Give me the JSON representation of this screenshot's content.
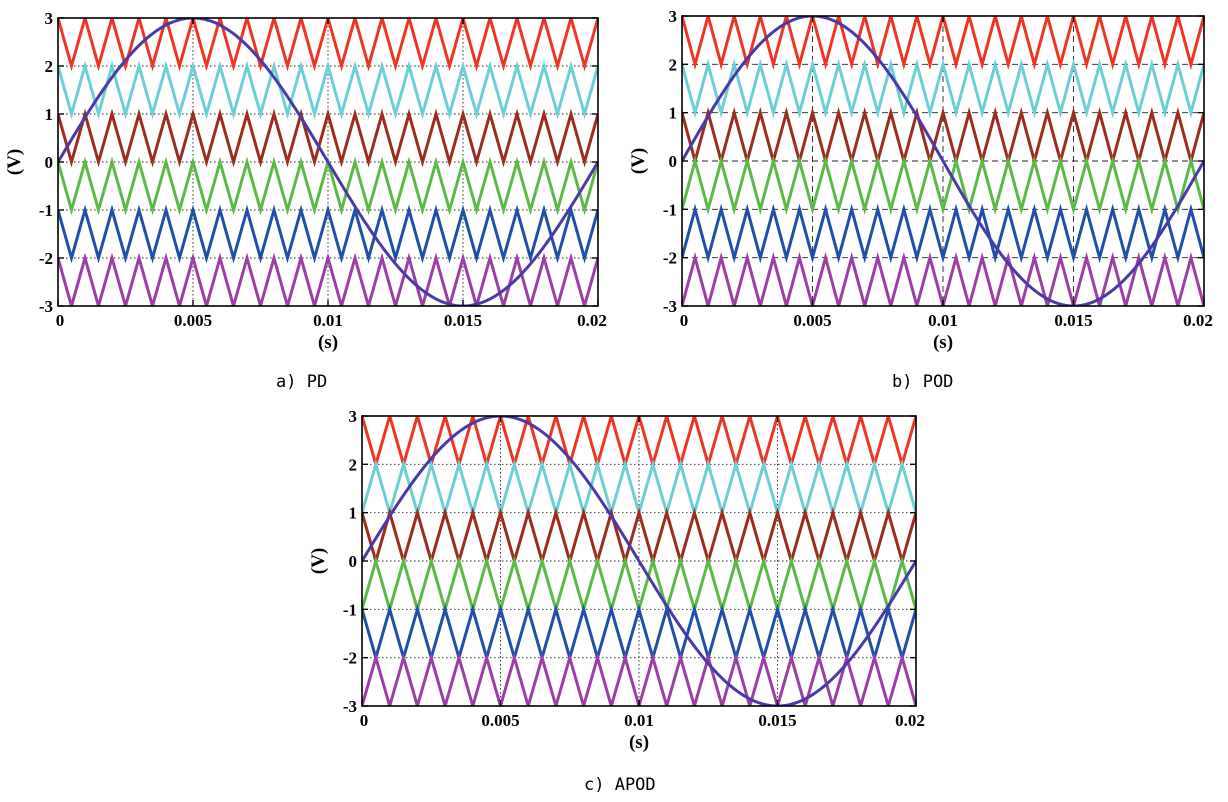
{
  "chart_data": [
    {
      "type": "line",
      "caption": "a) PD",
      "xlabel": "(s)",
      "ylabel": "(V)",
      "xlim": [
        0,
        0.02
      ],
      "ylim": [
        -3,
        3
      ],
      "xticks": [
        0,
        0.005,
        0.01,
        0.015,
        0.02
      ],
      "xtick_labels": [
        "0",
        "0.005",
        "0.01",
        "0.015",
        "0.02"
      ],
      "yticks": [
        3,
        2,
        1,
        0,
        -1,
        -2,
        -3
      ],
      "ytick_labels": [
        "3",
        "2",
        "1",
        "0",
        "-1",
        "-2",
        "-3"
      ],
      "grid": true,
      "grid_style": "dotted",
      "reference": {
        "amplitude": 3,
        "frequency_hz": 50,
        "color": "#4a3aa8"
      },
      "carriers": {
        "frequency_hz": 1000,
        "series": [
          {
            "band": [
              2,
              3
            ],
            "phase": "in-phase",
            "color": "#ee3524"
          },
          {
            "band": [
              1,
              2
            ],
            "phase": "in-phase",
            "color": "#6dcfd6"
          },
          {
            "band": [
              0,
              1
            ],
            "phase": "in-phase",
            "color": "#9b2d1f"
          },
          {
            "band": [
              -1,
              0
            ],
            "phase": "in-phase",
            "color": "#5cb947"
          },
          {
            "band": [
              -2,
              -1
            ],
            "phase": "in-phase",
            "color": "#1f4fa8"
          },
          {
            "band": [
              -3,
              -2
            ],
            "phase": "in-phase",
            "color": "#9b3ea5"
          }
        ]
      }
    },
    {
      "type": "line",
      "caption": "b) POD",
      "xlabel": "(s)",
      "ylabel": "(V)",
      "xlim": [
        0,
        0.02
      ],
      "ylim": [
        -3,
        3
      ],
      "xticks": [
        0,
        0.005,
        0.01,
        0.015,
        0.02
      ],
      "xtick_labels": [
        "0",
        "0.005",
        "0.01",
        "0.015",
        "0.02"
      ],
      "yticks": [
        3,
        2,
        1,
        0,
        -1,
        -2,
        -3
      ],
      "ytick_labels": [
        "3",
        "2",
        "1",
        "0",
        "-1",
        "-2",
        "-3"
      ],
      "grid": true,
      "grid_style": "dashed",
      "reference": {
        "amplitude": 3,
        "frequency_hz": 50,
        "color": "#4a3aa8"
      },
      "carriers": {
        "frequency_hz": 1000,
        "series": [
          {
            "band": [
              2,
              3
            ],
            "phase": "in-phase",
            "color": "#ee3524"
          },
          {
            "band": [
              1,
              2
            ],
            "phase": "in-phase",
            "color": "#6dcfd6"
          },
          {
            "band": [
              0,
              1
            ],
            "phase": "in-phase",
            "color": "#9b2d1f"
          },
          {
            "band": [
              -1,
              0
            ],
            "phase": "opposite",
            "color": "#5cb947"
          },
          {
            "band": [
              -2,
              -1
            ],
            "phase": "opposite",
            "color": "#1f4fa8"
          },
          {
            "band": [
              -3,
              -2
            ],
            "phase": "opposite",
            "color": "#9b3ea5"
          }
        ]
      }
    },
    {
      "type": "line",
      "caption": "c) APOD",
      "xlabel": "(s)",
      "ylabel": "(V)",
      "xlim": [
        0,
        0.02
      ],
      "ylim": [
        -3,
        3
      ],
      "xticks": [
        0,
        0.005,
        0.01,
        0.015,
        0.02
      ],
      "xtick_labels": [
        "0",
        "0.005",
        "0.01",
        "0.015",
        "0.02"
      ],
      "yticks": [
        3,
        2,
        1,
        0,
        -1,
        -2,
        -3
      ],
      "ytick_labels": [
        "3",
        "2",
        "1",
        "0",
        "-1",
        "-2",
        "-3"
      ],
      "grid": true,
      "grid_style": "dotted",
      "reference": {
        "amplitude": 3,
        "frequency_hz": 50,
        "color": "#4a3aa8"
      },
      "carriers": {
        "frequency_hz": 1000,
        "series": [
          {
            "band": [
              2,
              3
            ],
            "phase": "in-phase",
            "color": "#ee3524"
          },
          {
            "band": [
              1,
              2
            ],
            "phase": "opposite",
            "color": "#6dcfd6"
          },
          {
            "band": [
              0,
              1
            ],
            "phase": "in-phase",
            "color": "#9b2d1f"
          },
          {
            "band": [
              -1,
              0
            ],
            "phase": "opposite",
            "color": "#5cb947"
          },
          {
            "band": [
              -2,
              -1
            ],
            "phase": "in-phase",
            "color": "#1f4fa8"
          },
          {
            "band": [
              -3,
              -2
            ],
            "phase": "opposite",
            "color": "#9b3ea5"
          }
        ]
      }
    }
  ]
}
